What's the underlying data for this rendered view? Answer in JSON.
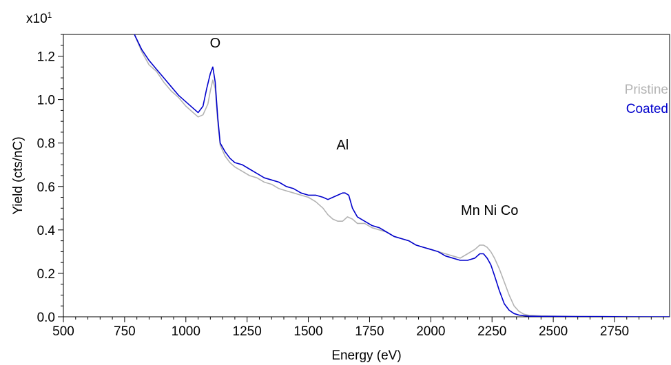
{
  "chart_data": {
    "type": "line",
    "multiplier_label": "x10",
    "multiplier_exponent": "1",
    "xlabel": "Energy (eV)",
    "ylabel": "Yield (cts/nC)",
    "xlim": [
      500,
      2975
    ],
    "ylim": [
      0,
      1.3
    ],
    "xticks": [
      500,
      750,
      1000,
      1250,
      1500,
      1750,
      2000,
      2250,
      2500,
      2750
    ],
    "yticks": [
      0.0,
      0.2,
      0.4,
      0.6,
      0.8,
      1.0,
      1.2
    ],
    "ytick_labels": [
      "0.0",
      "0.2",
      "0.4",
      "0.6",
      "0.8",
      "1.0",
      "1.2"
    ],
    "grid": false,
    "legend_position": "right",
    "annotations": [
      {
        "text": "O",
        "x": 1120,
        "y": 1.24
      },
      {
        "text": "Al",
        "x": 1640,
        "y": 0.77
      },
      {
        "text": "Mn Ni Co",
        "x": 2240,
        "y": 0.47
      }
    ],
    "series": [
      {
        "name": "Pristine",
        "color": "#b3b3b3",
        "x": [
          790,
          820,
          850,
          880,
          910,
          940,
          970,
          1000,
          1030,
          1050,
          1070,
          1090,
          1100,
          1110,
          1120,
          1130,
          1140,
          1160,
          1180,
          1200,
          1230,
          1260,
          1290,
          1320,
          1350,
          1380,
          1410,
          1440,
          1470,
          1500,
          1530,
          1560,
          1580,
          1600,
          1620,
          1640,
          1660,
          1680,
          1700,
          1730,
          1760,
          1790,
          1820,
          1850,
          1880,
          1910,
          1940,
          1970,
          2000,
          2030,
          2060,
          2090,
          2120,
          2150,
          2180,
          2200,
          2215,
          2230,
          2245,
          2260,
          2280,
          2300,
          2320,
          2340,
          2360,
          2380,
          2400,
          2450,
          2500,
          2600,
          2700,
          2800,
          2900,
          2975
        ],
        "y": [
          1.3,
          1.22,
          1.16,
          1.13,
          1.08,
          1.04,
          1.01,
          0.97,
          0.94,
          0.92,
          0.93,
          0.98,
          1.04,
          1.09,
          1.05,
          0.9,
          0.79,
          0.74,
          0.71,
          0.69,
          0.67,
          0.65,
          0.64,
          0.62,
          0.61,
          0.59,
          0.58,
          0.57,
          0.56,
          0.55,
          0.53,
          0.5,
          0.47,
          0.45,
          0.44,
          0.44,
          0.46,
          0.45,
          0.43,
          0.43,
          0.41,
          0.4,
          0.39,
          0.37,
          0.36,
          0.35,
          0.33,
          0.32,
          0.31,
          0.3,
          0.29,
          0.28,
          0.27,
          0.29,
          0.31,
          0.33,
          0.33,
          0.32,
          0.3,
          0.27,
          0.22,
          0.16,
          0.1,
          0.05,
          0.025,
          0.012,
          0.007,
          0.004,
          0.003,
          0.002,
          0.001,
          0.001,
          0.0,
          0.0
        ]
      },
      {
        "name": "Coated",
        "color": "#0000cc",
        "x": [
          790,
          820,
          850,
          880,
          910,
          940,
          970,
          1000,
          1030,
          1050,
          1070,
          1085,
          1100,
          1110,
          1120,
          1130,
          1140,
          1160,
          1180,
          1200,
          1230,
          1260,
          1290,
          1320,
          1350,
          1380,
          1410,
          1440,
          1470,
          1500,
          1530,
          1560,
          1580,
          1600,
          1620,
          1640,
          1650,
          1665,
          1680,
          1700,
          1730,
          1760,
          1790,
          1820,
          1850,
          1880,
          1910,
          1940,
          1970,
          2000,
          2030,
          2060,
          2090,
          2120,
          2150,
          2180,
          2200,
          2215,
          2230,
          2245,
          2260,
          2280,
          2300,
          2320,
          2340,
          2360,
          2380,
          2400,
          2450,
          2500,
          2600,
          2700,
          2800,
          2900,
          2975
        ],
        "y": [
          1.3,
          1.23,
          1.18,
          1.14,
          1.1,
          1.06,
          1.02,
          0.99,
          0.96,
          0.94,
          0.97,
          1.05,
          1.12,
          1.15,
          1.08,
          0.92,
          0.8,
          0.76,
          0.73,
          0.71,
          0.7,
          0.68,
          0.66,
          0.64,
          0.63,
          0.62,
          0.6,
          0.59,
          0.57,
          0.56,
          0.56,
          0.55,
          0.54,
          0.55,
          0.56,
          0.57,
          0.57,
          0.56,
          0.5,
          0.46,
          0.44,
          0.42,
          0.41,
          0.39,
          0.37,
          0.36,
          0.35,
          0.33,
          0.32,
          0.31,
          0.3,
          0.28,
          0.27,
          0.26,
          0.26,
          0.27,
          0.29,
          0.29,
          0.27,
          0.24,
          0.19,
          0.12,
          0.06,
          0.03,
          0.015,
          0.008,
          0.005,
          0.003,
          0.002,
          0.002,
          0.001,
          0.001,
          0.0,
          0.0,
          0.0
        ]
      }
    ]
  }
}
